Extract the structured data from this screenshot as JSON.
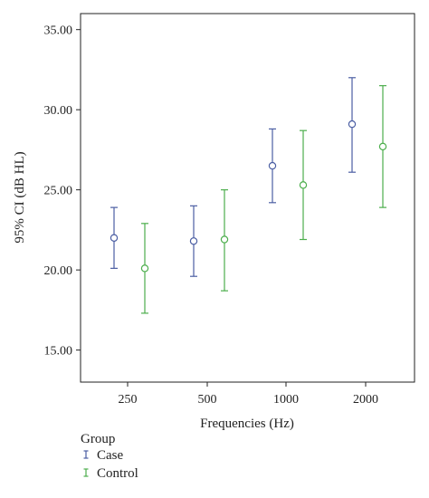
{
  "chart_data": {
    "type": "scatter",
    "categories": [
      "250",
      "500",
      "1000",
      "2000"
    ],
    "xlabel": "Frequencies (Hz)",
    "ylabel": "95% CI (dB HL)",
    "ylim": [
      13.0,
      36.0
    ],
    "yticks": [
      "15.00",
      "20.00",
      "25.00",
      "30.00",
      "35.00"
    ],
    "grid": false,
    "legend": {
      "title": "Group",
      "placement": "bottom-left"
    },
    "series": [
      {
        "name": "Case",
        "color": "#4b5ea3",
        "mean": [
          22.0,
          21.8,
          26.5,
          29.1
        ],
        "lower": [
          20.1,
          19.6,
          24.2,
          26.1
        ],
        "upper": [
          23.9,
          24.0,
          28.8,
          32.0
        ]
      },
      {
        "name": "Control",
        "color": "#4cae4c",
        "mean": [
          20.1,
          21.9,
          25.3,
          27.7
        ],
        "lower": [
          17.3,
          18.7,
          21.9,
          23.9
        ],
        "upper": [
          22.9,
          25.0,
          28.7,
          31.5
        ]
      }
    ]
  }
}
